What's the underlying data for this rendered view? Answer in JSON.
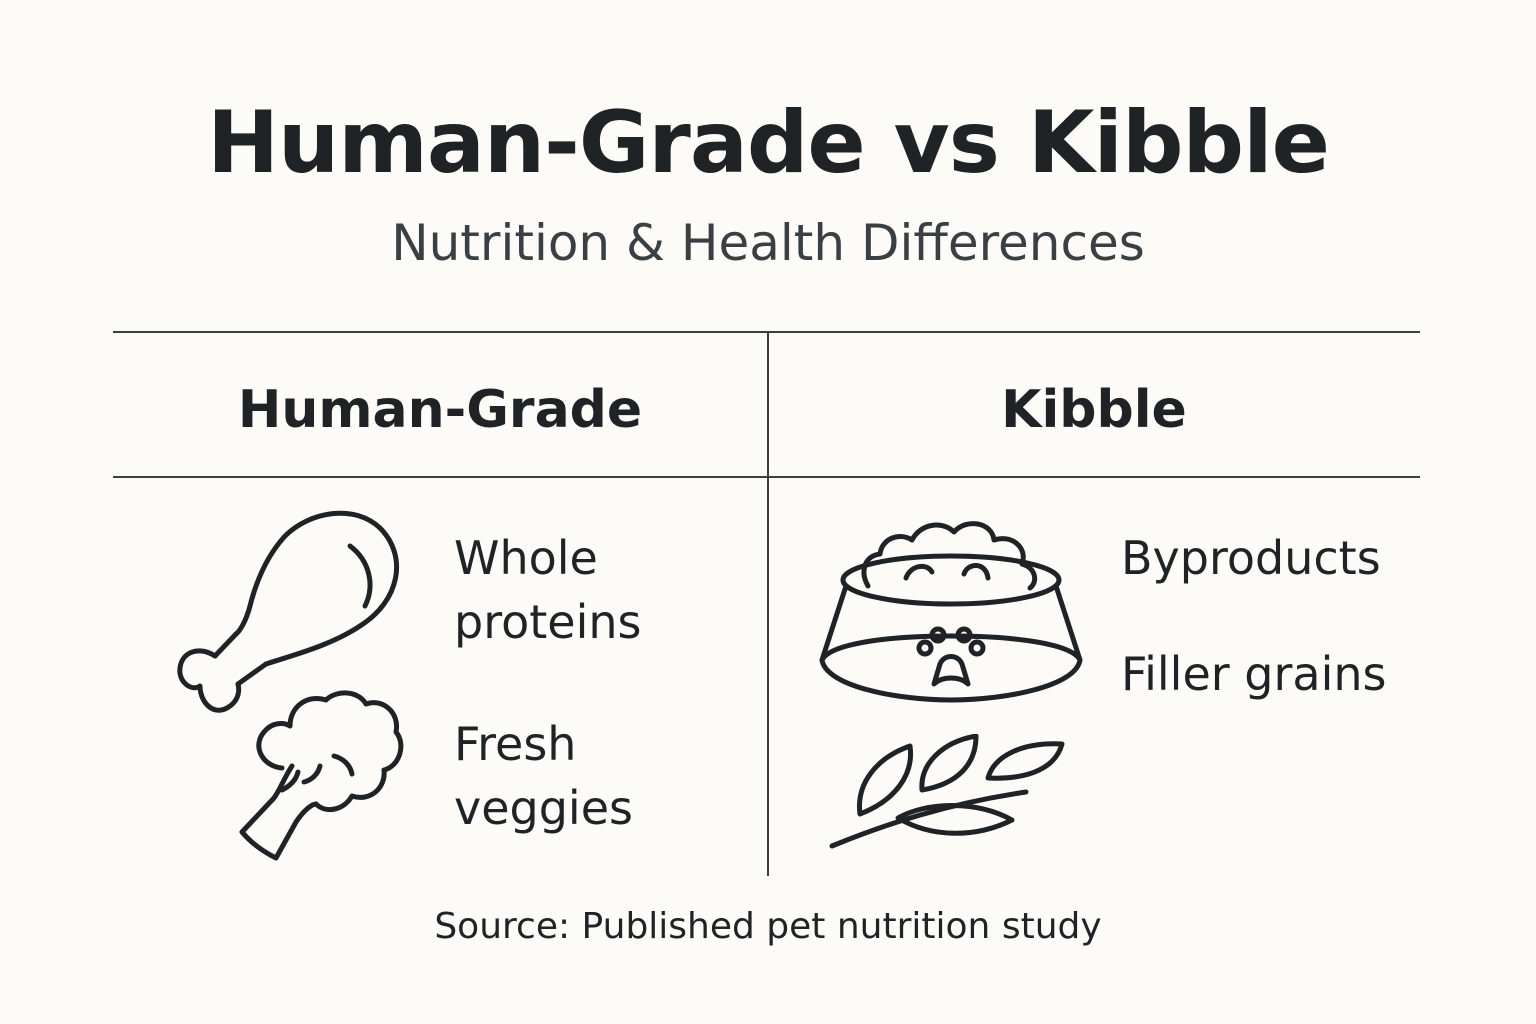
{
  "title": "Human-Grade vs Kibble",
  "subtitle": "Nutrition & Health Differences",
  "columns": [
    {
      "heading": "Human-Grade",
      "items": [
        {
          "label_line1": "Whole",
          "label_line2": "proteins",
          "icon": "chicken-drumstick-icon"
        },
        {
          "label_line1": "Fresh",
          "label_line2": "veggies",
          "icon": "broccoli-icon"
        }
      ]
    },
    {
      "heading": "Kibble",
      "items": [
        {
          "label": "Byproducts",
          "icon": "kibble-bowl-icon"
        },
        {
          "label": "Filler grains",
          "icon": "grain-stalk-icon"
        }
      ]
    }
  ],
  "source": "Source: Published pet nutrition study",
  "colors": {
    "background": "#fcfbf7",
    "text": "#1f2326",
    "line": "#3b3f42"
  }
}
